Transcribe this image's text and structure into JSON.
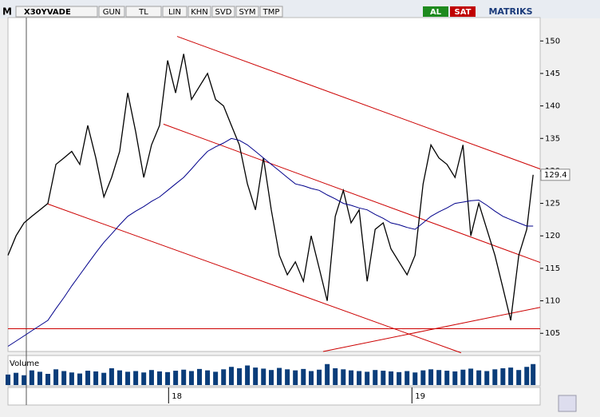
{
  "toolbar": {
    "logo": "M",
    "symbol": "X30YVADE",
    "buttons": [
      "GUN",
      "TL",
      "LIN",
      "KHN",
      "SVD",
      "SYM",
      "TMP"
    ],
    "actions": [
      "AL",
      "SAT"
    ],
    "brand": "MATRIKS"
  },
  "chart_data": {
    "type": "line",
    "x": [
      17.34,
      17.373,
      17.406,
      17.438,
      17.471,
      17.504,
      17.537,
      17.57,
      17.602,
      17.635,
      17.668,
      17.701,
      17.734,
      17.766,
      17.799,
      17.832,
      17.865,
      17.898,
      17.93,
      17.963,
      17.996,
      18.029,
      18.062,
      18.094,
      18.127,
      18.16,
      18.193,
      18.226,
      18.258,
      18.291,
      18.324,
      18.357,
      18.39,
      18.422,
      18.455,
      18.488,
      18.521,
      18.554,
      18.586,
      18.619,
      18.652,
      18.685,
      18.718,
      18.75,
      18.783,
      18.816,
      18.849,
      18.882,
      18.914,
      18.947,
      18.98,
      19.013,
      19.046,
      19.078,
      19.111,
      19.144,
      19.177,
      19.21,
      19.242,
      19.275,
      19.308,
      19.341,
      19.374,
      19.406,
      19.439,
      19.472,
      19.498
    ],
    "series": [
      {
        "color": "#000000",
        "values": [
          117,
          120,
          122,
          123,
          124,
          125,
          131,
          132,
          133,
          131,
          137,
          132,
          126,
          129,
          133,
          142,
          136,
          129,
          134,
          137,
          147,
          142,
          148,
          141,
          143,
          145,
          141,
          140,
          137,
          134,
          128,
          124,
          132,
          124,
          117,
          114,
          116,
          113,
          120,
          115,
          110,
          123,
          127,
          122,
          124,
          113,
          121,
          122,
          118,
          116,
          114,
          117,
          128,
          134,
          132,
          131,
          129,
          134,
          120,
          125,
          121,
          117,
          112,
          107,
          117,
          121,
          129.4
        ]
      },
      {
        "color": "#00008b",
        "values": [
          103,
          103.8,
          104.6,
          105.4,
          106.2,
          107,
          108.8,
          110.5,
          112.3,
          114,
          115.7,
          117.4,
          119,
          120.3,
          121.7,
          123,
          123.8,
          124.5,
          125.3,
          126,
          127,
          128,
          129,
          130.3,
          131.7,
          133,
          133.7,
          134.3,
          135,
          134.7,
          134,
          133,
          132,
          131,
          130,
          129,
          128,
          127.7,
          127.3,
          127,
          126.3,
          125.7,
          125,
          124.7,
          124.3,
          124,
          123.3,
          122.7,
          122,
          121.7,
          121.3,
          121,
          122,
          123,
          123.7,
          124.3,
          125,
          125.2,
          125.4,
          125.5,
          124.7,
          123.8,
          123,
          122.5,
          122,
          121.5,
          121.5
        ]
      }
    ],
    "ylim": [
      102.2,
      153.6
    ],
    "yticks": [
      105,
      110,
      115,
      120,
      125,
      130,
      135,
      140,
      145,
      150
    ],
    "xlim": [
      17.34,
      19.527
    ],
    "xticks": [
      {
        "value": 18,
        "label": "18"
      },
      {
        "value": 19,
        "label": "19"
      }
    ],
    "annotations": [
      {
        "color": "#cc0000",
        "points": [
          [
            18.035,
            150.7
          ],
          [
            19.527,
            130.3
          ]
        ]
      },
      {
        "color": "#cc0000",
        "points": [
          [
            17.979,
            137.2
          ],
          [
            19.527,
            115.9
          ]
        ]
      },
      {
        "color": "#cc0000",
        "points": [
          [
            17.504,
            124.9
          ],
          [
            19.202,
            102.0
          ]
        ]
      },
      {
        "color": "#cc0000",
        "points": [
          [
            17.34,
            105.7
          ],
          [
            19.527,
            105.7
          ]
        ]
      },
      {
        "color": "#cc0000",
        "points": [
          [
            18.635,
            102.2
          ],
          [
            19.527,
            109.0
          ]
        ]
      }
    ],
    "volume": {
      "label": "Volume",
      "color": "#0a3d7a",
      "ylim": [
        0,
        800000
      ],
      "values": [
        300000,
        350000,
        280000,
        420000,
        380000,
        320000,
        450000,
        400000,
        360000,
        330000,
        410000,
        390000,
        350000,
        480000,
        420000,
        380000,
        400000,
        360000,
        430000,
        390000,
        370000,
        410000,
        440000,
        400000,
        460000,
        420000,
        380000,
        450000,
        520000,
        480000,
        560000,
        500000,
        470000,
        430000,
        490000,
        450000,
        420000,
        460000,
        400000,
        440000,
        600000,
        480000,
        450000,
        420000,
        400000,
        380000,
        430000,
        410000,
        390000,
        370000,
        400000,
        360000,
        420000,
        450000,
        430000,
        410000,
        390000,
        440000,
        470000,
        420000,
        400000,
        450000,
        480000,
        500000,
        430000,
        520000,
        600000
      ]
    }
  }
}
